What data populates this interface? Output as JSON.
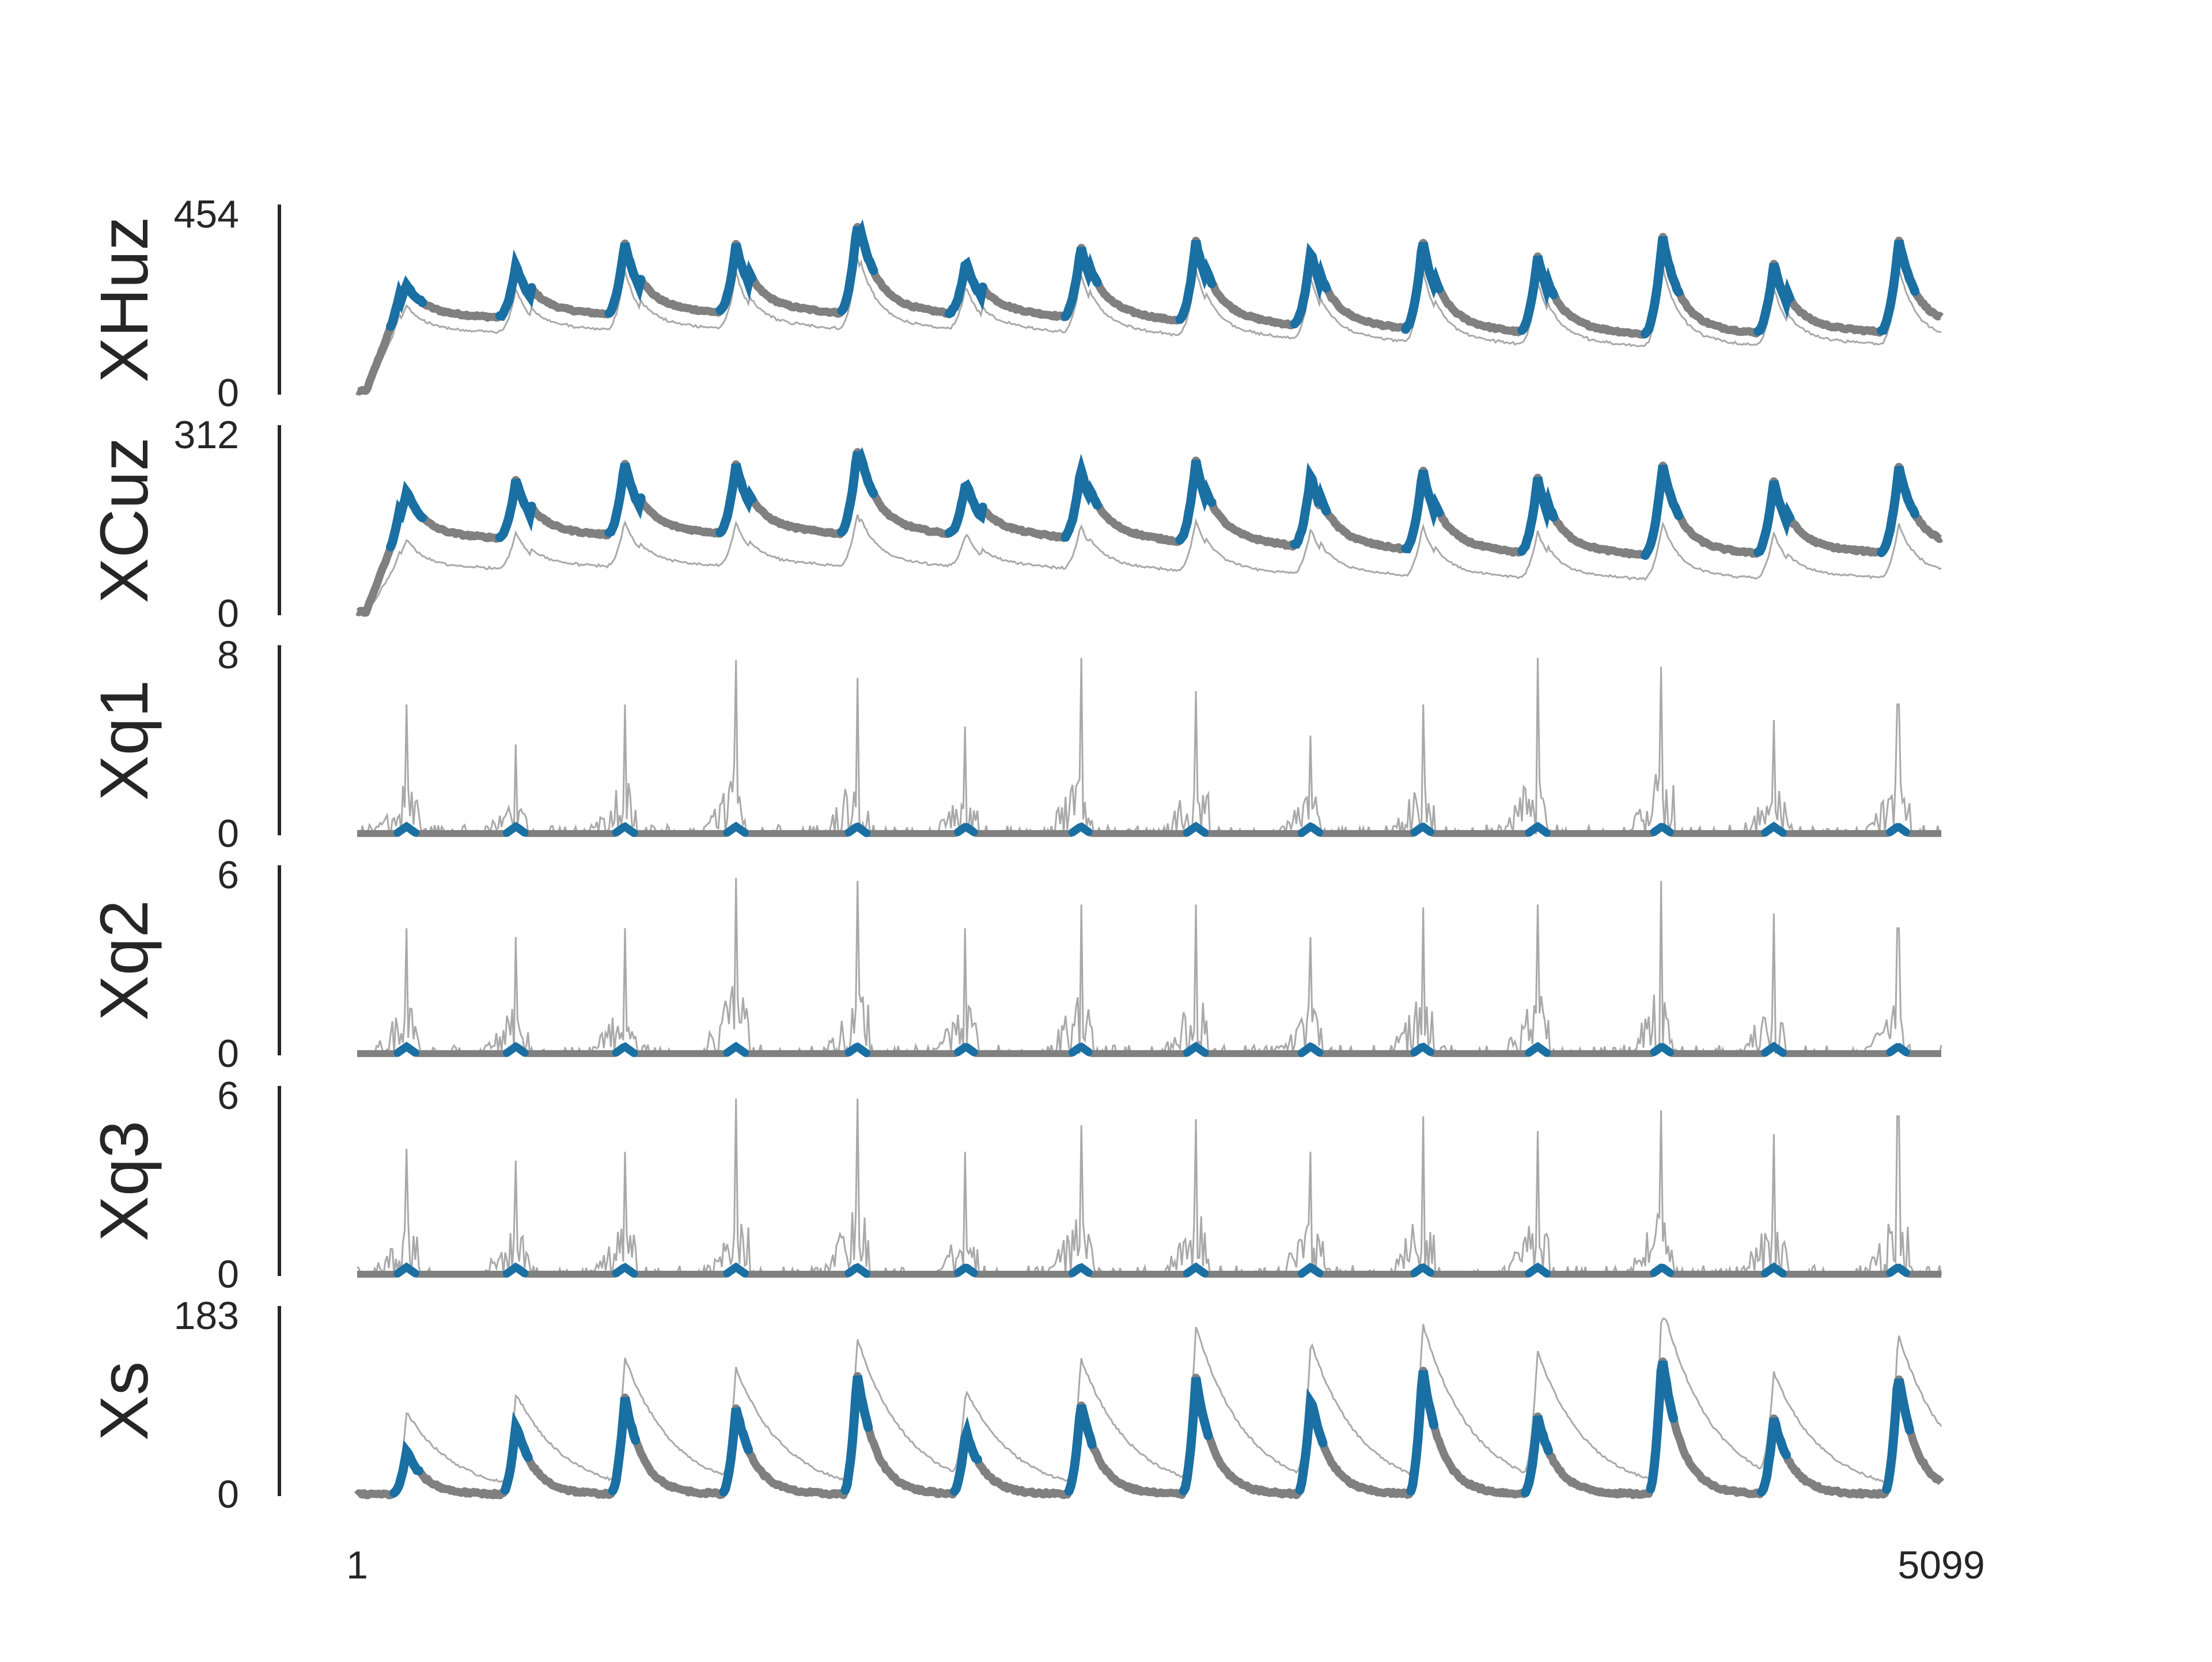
{
  "chart_data": {
    "type": "line",
    "x_range": [
      1,
      5099
    ],
    "x_ticks": [
      "1",
      "5099"
    ],
    "colors": {
      "highlight": "#1a6fa3",
      "thick_series": "#808080",
      "thin_series": "#a9a9a9",
      "axis": "#262626"
    },
    "peak_positions": [
      160,
      512,
      862,
      1220,
      1610,
      1960,
      2330,
      2700,
      3070,
      3430,
      3800,
      4200,
      4560,
      4960
    ],
    "panels": [
      {
        "label": "XHuz",
        "ylim": [
          0,
          454
        ],
        "ytick_top": "454",
        "ytick_bottom": "0",
        "kind": "slow",
        "peak_heights": [
          290,
          355,
          405,
          395,
          450,
          355,
          405,
          430,
          415,
          450,
          420,
          455,
          400,
          440
        ],
        "thin_scale": 0.82
      },
      {
        "label": "XCuz",
        "ylim": [
          0,
          312
        ],
        "ytick_top": "312",
        "ytick_bottom": "0",
        "kind": "slow",
        "peak_heights": [
          225,
          255,
          280,
          275,
          300,
          245,
          275,
          295,
          280,
          295,
          285,
          300,
          280,
          290
        ],
        "thin_scale": 0.62
      },
      {
        "label": "Xq1",
        "ylim": [
          0,
          8
        ],
        "ytick_top": "8",
        "ytick_bottom": "0",
        "kind": "spiky",
        "peak_heights": [
          5.9,
          4.1,
          5.9,
          7.9,
          7.1,
          4.9,
          8.0,
          6.5,
          4.5,
          5.9,
          8.1,
          7.6,
          5.2,
          5.9
        ]
      },
      {
        "label": "Xq2",
        "ylim": [
          0,
          6
        ],
        "ytick_top": "6",
        "ytick_bottom": "0",
        "kind": "spiky",
        "peak_heights": [
          4.3,
          4.0,
          4.3,
          6.0,
          5.9,
          4.3,
          5.1,
          5.1,
          4.0,
          5.0,
          5.1,
          5.9,
          4.8,
          4.3
        ]
      },
      {
        "label": "Xq3",
        "ylim": [
          0,
          6
        ],
        "ytick_top": "6",
        "ytick_bottom": "0",
        "kind": "spiky",
        "peak_heights": [
          4.3,
          3.9,
          4.2,
          6.0,
          6.0,
          4.2,
          5.1,
          5.3,
          4.2,
          5.4,
          4.9,
          5.6,
          4.8,
          5.4
        ]
      },
      {
        "label": "Xs",
        "ylim": [
          0,
          183
        ],
        "ytick_top": "183",
        "ytick_bottom": "0",
        "kind": "decay",
        "peak_heights": [
          45,
          72,
          100,
          90,
          125,
          65,
          95,
          120,
          100,
          130,
          80,
          145,
          78,
          125
        ],
        "thin_peak_heights": [
          85,
          95,
          130,
          115,
          150,
          90,
          130,
          160,
          140,
          160,
          130,
          185,
          105,
          155
        ]
      }
    ]
  }
}
